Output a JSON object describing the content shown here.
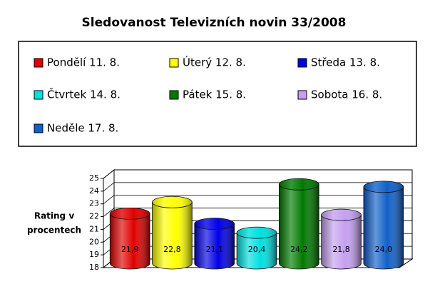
{
  "chart_data": {
    "type": "cylinder",
    "title": "Sledovanost Televizních novin 33/2008",
    "y_label": [
      "Rating v",
      "procentech"
    ],
    "categories": [
      "Pondělí 11. 8.",
      "Úterý 12. 8.",
      "Středa 13. 8.",
      "Čtvrtek 14. 8.",
      "Pátek 15. 8.",
      "Sobota 16. 8.",
      "Neděle 17. 8."
    ],
    "values": [
      21.9,
      22.8,
      21.1,
      20.4,
      24.2,
      21.8,
      24.0
    ],
    "value_labels": [
      "21,9",
      "22,8",
      "21,1",
      "20,4",
      "24,2",
      "21,8",
      "24,0"
    ],
    "colors": [
      "#e00000",
      "#ffff00",
      "#0000e6",
      "#00e0e0",
      "#007a00",
      "#c4a0f0",
      "#1060c8"
    ],
    "ylim": [
      18,
      25
    ],
    "yticks": [
      18,
      19,
      20,
      21,
      22,
      23,
      24,
      25
    ],
    "grid": true
  }
}
